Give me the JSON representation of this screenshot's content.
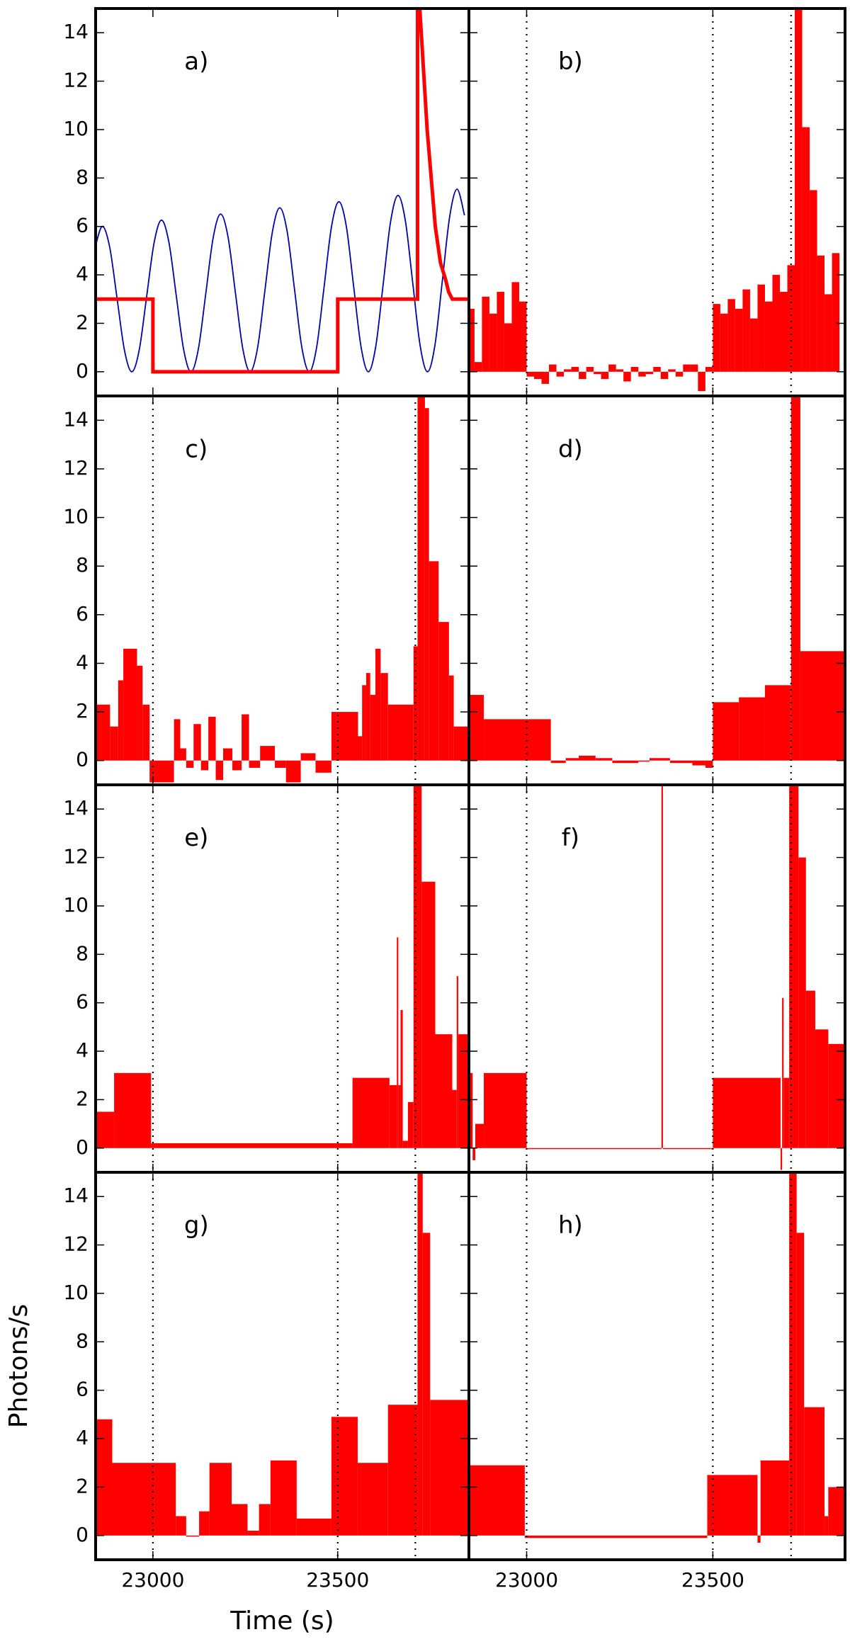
{
  "chart_data": [
    {
      "type": "line",
      "label": "a)",
      "xlim": [
        22845,
        23855
      ],
      "ylim": [
        -1,
        15
      ],
      "xticks": [
        23000,
        23500
      ],
      "yticks": [
        0,
        2,
        4,
        6,
        8,
        10,
        12,
        14
      ],
      "series": [
        {
          "color": "#0000b0",
          "x": [
            22843,
            22863,
            22883,
            22903,
            22923,
            22943,
            22963,
            22983,
            23003,
            23023,
            23043,
            23063,
            23083,
            23103,
            23123,
            23143,
            23163,
            23183,
            23203,
            23223,
            23243,
            23263,
            23283,
            23303,
            23323,
            23343,
            23363,
            23383,
            23403,
            23423,
            23443,
            23463,
            23483,
            23503,
            23523,
            23543,
            23563,
            23583,
            23603,
            23623,
            23643,
            23663,
            23683,
            23703,
            23723,
            23743,
            23763,
            23783,
            23803,
            23823,
            23843
          ],
          "values": [
            5.1,
            6.0,
            5.15,
            3.03,
            0.89,
            0,
            0.9,
            3.1,
            5.31,
            6.26,
            5.37,
            3.16,
            0.93,
            0,
            0.94,
            3.22,
            5.53,
            6.51,
            5.59,
            3.29,
            0.97,
            0,
            0.97,
            3.35,
            5.75,
            6.77,
            5.81,
            3.42,
            1.0,
            0,
            1.01,
            3.48,
            5.97,
            7.02,
            6.03,
            3.54,
            1.04,
            0,
            1.05,
            3.61,
            6.19,
            7.28,
            6.24,
            3.67,
            1.08,
            0,
            1.09,
            3.74,
            6.41,
            7.54,
            6.46
          ]
        },
        {
          "color": "#ff0000",
          "x": [
            22845,
            23000,
            23000,
            23500,
            23500,
            23716,
            23716,
            23722,
            23742,
            23764,
            23778,
            23792,
            23800,
            23810,
            23855
          ],
          "values": [
            3,
            3,
            0,
            0,
            3,
            3,
            20,
            15,
            10,
            6,
            4.5,
            3.8,
            3.3,
            3,
            3
          ]
        }
      ]
    },
    {
      "type": "histogram",
      "label": "b)",
      "color": "#ff0000",
      "xlim": [
        22845,
        23855
      ],
      "ylim": [
        -1,
        15
      ],
      "xticks": [
        23000,
        23500
      ],
      "yticks": [
        0,
        2,
        4,
        6,
        8,
        10,
        12,
        14
      ],
      "vlines": [
        23000,
        23500,
        23710
      ],
      "bins": [
        22840,
        22860,
        22880,
        22900,
        22920,
        22940,
        22960,
        22980,
        23000,
        23020,
        23040,
        23060,
        23080,
        23100,
        23120,
        23140,
        23160,
        23180,
        23200,
        23220,
        23240,
        23260,
        23280,
        23300,
        23320,
        23340,
        23360,
        23380,
        23400,
        23420,
        23440,
        23460,
        23480,
        23500,
        23520,
        23540,
        23560,
        23580,
        23600,
        23620,
        23640,
        23660,
        23680,
        23700,
        23720,
        23740,
        23760,
        23780,
        23800,
        23820,
        23840
      ],
      "values": [
        2.6,
        0.4,
        3.1,
        2.4,
        3.3,
        2.0,
        3.7,
        2.9,
        -0.2,
        -0.3,
        -0.5,
        0.3,
        -0.2,
        0.1,
        0.2,
        -0.3,
        0.2,
        -0.1,
        -0.3,
        0.3,
        0.1,
        -0.4,
        0.2,
        -0.2,
        -0.1,
        0.2,
        -0.3,
        0.1,
        -0.2,
        0.3,
        0.3,
        -0.8,
        0.2,
        2.8,
        2.4,
        3.0,
        2.6,
        3.4,
        2.2,
        3.6,
        2.9,
        4.0,
        3.3,
        4.4,
        16,
        10.1,
        7.5,
        4.8,
        3.2,
        4.9
      ]
    },
    {
      "type": "histogram",
      "label": "c)",
      "color": "#ff0000",
      "xlim": [
        22845,
        23855
      ],
      "ylim": [
        -1,
        15
      ],
      "xticks": [
        23000,
        23500
      ],
      "yticks": [
        0,
        2,
        4,
        6,
        8,
        10,
        12,
        14
      ],
      "vlines": [
        23000,
        23500,
        23710
      ],
      "bins": [
        22845,
        22884,
        22906,
        22920,
        22957,
        22972,
        22991,
        23057,
        23074,
        23090,
        23110,
        23130,
        23150,
        23170,
        23190,
        23215,
        23240,
        23260,
        23290,
        23330,
        23360,
        23400,
        23440,
        23483,
        23555,
        23566,
        23577,
        23588,
        23602,
        23616,
        23636,
        23705,
        23716,
        23736,
        23747,
        23773,
        23801,
        23814,
        23855
      ],
      "values": [
        2.3,
        1.4,
        3.3,
        4.6,
        3.9,
        2.3,
        -0.9,
        1.7,
        0.5,
        -0.3,
        1.5,
        -0.4,
        1.8,
        -0.8,
        0.5,
        -0.4,
        1.9,
        -0.3,
        0.6,
        -0.3,
        -0.9,
        0.3,
        -0.5,
        2.0,
        1.0,
        3.1,
        3.6,
        2.7,
        4.6,
        3.6,
        2.3,
        4.7,
        15.5,
        14.5,
        8.2,
        5.7,
        3.5,
        1.4
      ]
    },
    {
      "type": "histogram",
      "label": "d)",
      "color": "#ff0000",
      "xlim": [
        22845,
        23855
      ],
      "ylim": [
        -1,
        15
      ],
      "xticks": [
        23000,
        23500
      ],
      "yticks": [
        0,
        2,
        4,
        6,
        8,
        10,
        12,
        14
      ],
      "vlines": [
        23000,
        23500,
        23710
      ],
      "bins": [
        22845,
        22885,
        23065,
        23105,
        23140,
        23185,
        23230,
        23300,
        23330,
        23385,
        23445,
        23480,
        23500,
        23570,
        23640,
        23710,
        23735,
        23855
      ],
      "values": [
        2.7,
        1.7,
        -0.1,
        0.1,
        0.2,
        0.1,
        -0.1,
        0.0,
        0.1,
        -0.1,
        -0.2,
        -0.3,
        2.4,
        2.6,
        3.1,
        15.5,
        4.5
      ]
    },
    {
      "type": "histogram",
      "label": "e)",
      "color": "#ff0000",
      "xlim": [
        22845,
        23855
      ],
      "ylim": [
        -1,
        15
      ],
      "xticks": [
        23000,
        23500
      ],
      "yticks": [
        0,
        2,
        4,
        6,
        8,
        10,
        12,
        14
      ],
      "vlines": [
        23000,
        23500,
        23710
      ],
      "bins": [
        22845,
        22895,
        22995,
        23540,
        23640,
        23660,
        23664,
        23670,
        23676,
        23690,
        23705,
        23727,
        23764,
        23810,
        23822,
        23826,
        23855
      ],
      "values": [
        1.5,
        3.1,
        0.2,
        2.9,
        2.6,
        8.7,
        2.6,
        5.7,
        0.3,
        1.9,
        15.5,
        11.0,
        4.7,
        2.4,
        7.1,
        4.7
      ]
    },
    {
      "type": "histogram",
      "label": "f)",
      "color": "#ff0000",
      "xlim": [
        22845,
        23855
      ],
      "ylim": [
        -1,
        15
      ],
      "xticks": [
        23000,
        23500
      ],
      "yticks": [
        0,
        2,
        4,
        6,
        8,
        10,
        12,
        14
      ],
      "vlines": [
        23000,
        23500,
        23710
      ],
      "bins": [
        22845,
        22855,
        22862,
        22885,
        23000,
        23362,
        23366,
        23500,
        23682,
        23686,
        23690,
        23705,
        23730,
        23750,
        23775,
        23810,
        23855
      ],
      "values": [
        3.1,
        -0.5,
        1.0,
        3.1,
        0.0,
        15.5,
        0.0,
        2.9,
        -0.9,
        6.2,
        2.9,
        15.5,
        12.0,
        6.5,
        4.9,
        4.3
      ]
    },
    {
      "type": "histogram",
      "label": "g)",
      "color": "#ff0000",
      "xlim": [
        22845,
        23855
      ],
      "ylim": [
        -1,
        15
      ],
      "xticks": [
        23000,
        23500
      ],
      "yticks": [
        0,
        2,
        4,
        6,
        8,
        10,
        12,
        14
      ],
      "vlines": [
        23000,
        23500,
        23710
      ],
      "xlabel": "Time (s)",
      "ylabel": "Photons/s",
      "bins": [
        22845,
        22890,
        23062,
        23090,
        23125,
        23153,
        23213,
        23256,
        23287,
        23318,
        23389,
        23483,
        23554,
        23636,
        23716,
        23730,
        23750,
        23855
      ],
      "values": [
        4.8,
        3.0,
        0.8,
        0.0,
        1.0,
        3.0,
        1.3,
        0.2,
        1.3,
        3.1,
        0.7,
        4.9,
        3.0,
        5.4,
        15.5,
        12.5,
        5.6
      ]
    },
    {
      "type": "histogram",
      "label": "h)",
      "color": "#ff0000",
      "xlim": [
        22845,
        23855
      ],
      "ylim": [
        -1,
        15
      ],
      "xticks": [
        23000,
        23500
      ],
      "yticks": [
        0,
        2,
        4,
        6,
        8,
        10,
        12,
        14
      ],
      "vlines": [
        23000,
        23500,
        23710
      ],
      "bins": [
        22845,
        22995,
        23485,
        23620,
        23628,
        23705,
        23725,
        23745,
        23800,
        23810,
        23855
      ],
      "values": [
        2.9,
        -0.1,
        2.5,
        -0.3,
        3.1,
        15.5,
        12.5,
        5.3,
        0.8,
        2.0
      ]
    }
  ]
}
